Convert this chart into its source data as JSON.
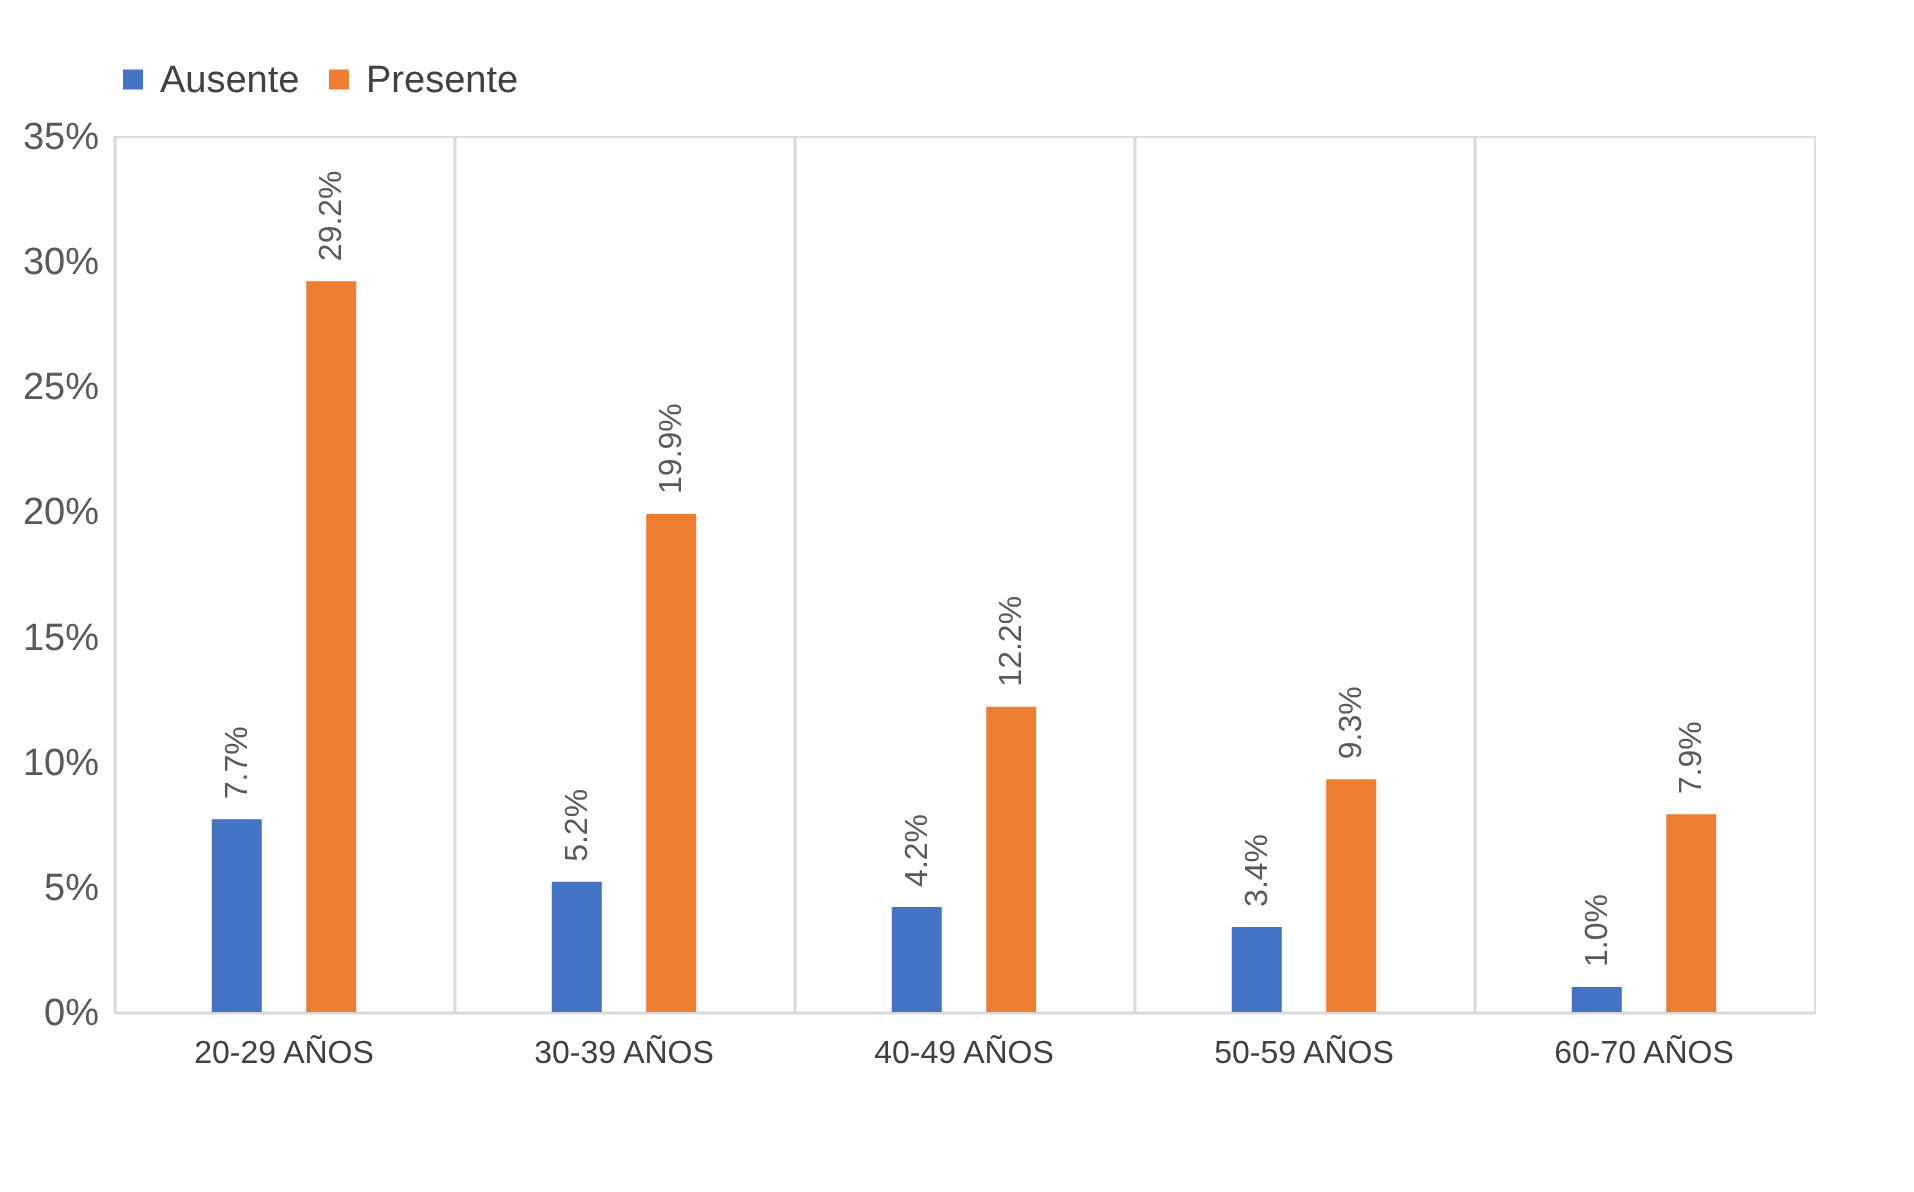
{
  "chart_data": {
    "type": "bar",
    "categories": [
      "20-29 AÑOS",
      "30-39 AÑOS",
      "40-49 AÑOS",
      "50-59 AÑOS",
      "60-70 AÑOS"
    ],
    "series": [
      {
        "name": "Ausente",
        "color": "#4472c4",
        "values": [
          7.7,
          5.2,
          4.2,
          3.4,
          1.0
        ],
        "value_labels": [
          "7.7%",
          "5.2%",
          "4.2%",
          "3.4%",
          "1.0%"
        ]
      },
      {
        "name": "Presente",
        "color": "#ed7d31",
        "values": [
          29.2,
          19.9,
          12.2,
          9.3,
          7.9
        ],
        "value_labels": [
          "29.2%",
          "19.9%",
          "12.2%",
          "9.3%",
          "7.9%"
        ]
      }
    ],
    "ylim": [
      0,
      35
    ],
    "yticks": [
      {
        "value": 0,
        "label": "0%"
      },
      {
        "value": 5,
        "label": "5%"
      },
      {
        "value": 10,
        "label": "10%"
      },
      {
        "value": 15,
        "label": "15%"
      },
      {
        "value": 20,
        "label": "20%"
      },
      {
        "value": 25,
        "label": "25%"
      },
      {
        "value": 30,
        "label": "30%"
      },
      {
        "value": 35,
        "label": "35%"
      }
    ],
    "grid": "x",
    "legend": "top"
  }
}
